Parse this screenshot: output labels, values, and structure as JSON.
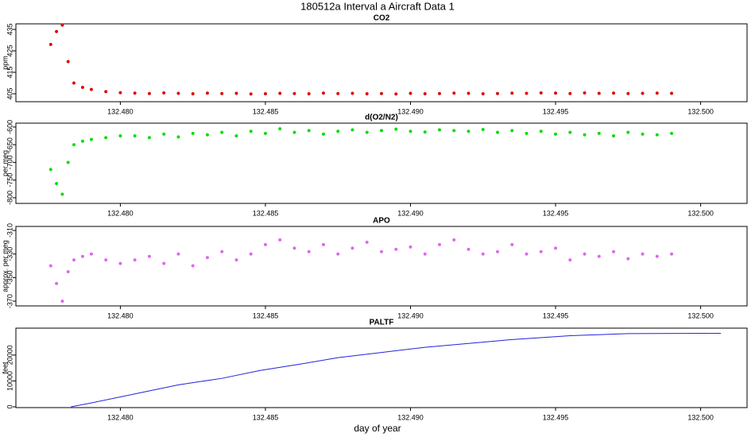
{
  "title": "180512a   Interval a Aircraft Data 1",
  "xlabel": "day of year",
  "chart_data": [
    {
      "type": "scatter",
      "title": "CO2",
      "ylabel": "ppm",
      "color": "#e00000",
      "x": [
        132.4776,
        132.4778,
        132.478,
        132.4782,
        132.4784,
        132.4787,
        132.479,
        132.4795,
        132.48,
        132.4805,
        132.481,
        132.4815,
        132.482,
        132.4825,
        132.483,
        132.4835,
        132.484,
        132.4845,
        132.485,
        132.4855,
        132.486,
        132.4865,
        132.487,
        132.4875,
        132.488,
        132.4885,
        132.489,
        132.4895,
        132.49,
        132.4905,
        132.491,
        132.4915,
        132.492,
        132.4925,
        132.493,
        132.4935,
        132.494,
        132.4945,
        132.495,
        132.4955,
        132.496,
        132.4965,
        132.497,
        132.4975,
        132.498,
        132.4985,
        132.499
      ],
      "values": [
        428,
        434,
        437,
        420,
        410,
        408,
        407,
        406,
        405.5,
        405.3,
        405.1,
        405.4,
        405.2,
        405,
        405.3,
        405.1,
        405.2,
        404.9,
        405,
        405.2,
        405.1,
        405,
        405.3,
        405.1,
        405.2,
        405,
        405.1,
        404.9,
        405.2,
        405,
        405.1,
        405.3,
        405.2,
        405,
        405.1,
        405.3,
        405.2,
        405.4,
        405.3,
        405.1,
        405.4,
        405.2,
        405.3,
        405.1,
        405.2,
        405.3,
        405.2
      ],
      "xlim": [
        132.4764,
        132.5016
      ],
      "ylim": [
        401.3,
        437.6
      ],
      "yticks": [
        405,
        415,
        425,
        435
      ],
      "xticks": [
        {
          "value": 132.48,
          "label": "132.480"
        },
        {
          "value": 132.485,
          "label": "132.485"
        },
        {
          "value": 132.49,
          "label": "132.490"
        },
        {
          "value": 132.495,
          "label": "132.495"
        },
        {
          "value": 132.5,
          "label": "132.500"
        }
      ]
    },
    {
      "type": "scatter",
      "title": "d(O2/N2)",
      "ylabel": "per meg",
      "color": "#00dd00",
      "x": [
        132.4776,
        132.4778,
        132.478,
        132.4782,
        132.4784,
        132.4787,
        132.479,
        132.4795,
        132.48,
        132.4805,
        132.481,
        132.4815,
        132.482,
        132.4825,
        132.483,
        132.4835,
        132.484,
        132.4845,
        132.485,
        132.4855,
        132.486,
        132.4865,
        132.487,
        132.4875,
        132.488,
        132.4885,
        132.489,
        132.4895,
        132.49,
        132.4905,
        132.491,
        132.4915,
        132.492,
        132.4925,
        132.493,
        132.4935,
        132.494,
        132.4945,
        132.495,
        132.4955,
        132.496,
        132.4965,
        132.497,
        132.4975,
        132.498,
        132.4985,
        132.499
      ],
      "values": [
        -720,
        -760,
        -790,
        -700,
        -650,
        -640,
        -635,
        -630,
        -625,
        -625,
        -630,
        -620,
        -628,
        -618,
        -622,
        -615,
        -625,
        -612,
        -618,
        -605,
        -615,
        -610,
        -620,
        -612,
        -608,
        -615,
        -610,
        -606,
        -612,
        -614,
        -608,
        -610,
        -612,
        -607,
        -615,
        -610,
        -618,
        -612,
        -620,
        -615,
        -622,
        -618,
        -625,
        -615,
        -620,
        -622,
        -618
      ],
      "xlim": [
        132.4764,
        132.5016
      ],
      "ylim": [
        -816,
        -589
      ],
      "yticks": [
        -800,
        -750,
        -700,
        -650,
        -600
      ],
      "xticks": [
        {
          "value": 132.48,
          "label": "132.480"
        },
        {
          "value": 132.485,
          "label": "132.485"
        },
        {
          "value": 132.49,
          "label": "132.490"
        },
        {
          "value": 132.495,
          "label": "132.495"
        },
        {
          "value": 132.5,
          "label": "132.500"
        }
      ]
    },
    {
      "type": "scatter",
      "title": "APO",
      "ylabel": "approx. per meg",
      "color": "#dd66ee",
      "x": [
        132.4776,
        132.4778,
        132.478,
        132.4782,
        132.4784,
        132.4787,
        132.479,
        132.4795,
        132.48,
        132.4805,
        132.481,
        132.4815,
        132.482,
        132.4825,
        132.483,
        132.4835,
        132.484,
        132.4845,
        132.485,
        132.4855,
        132.486,
        132.4865,
        132.487,
        132.4875,
        132.488,
        132.4885,
        132.489,
        132.4895,
        132.49,
        132.4905,
        132.491,
        132.4915,
        132.492,
        132.4925,
        132.493,
        132.4935,
        132.494,
        132.4945,
        132.495,
        132.4955,
        132.496,
        132.4965,
        132.497,
        132.4975,
        132.498,
        132.4985,
        132.499
      ],
      "values": [
        -340,
        -355,
        -370,
        -345,
        -335,
        -332,
        -330,
        -335,
        -338,
        -335,
        -332,
        -338,
        -330,
        -340,
        -333,
        -328,
        -335,
        -330,
        -322,
        -318,
        -325,
        -328,
        -322,
        -330,
        -325,
        -320,
        -328,
        -326,
        -324,
        -330,
        -322,
        -318,
        -326,
        -330,
        -328,
        -322,
        -330,
        -328,
        -325,
        -335,
        -330,
        -332,
        -328,
        -334,
        -330,
        -332,
        -330
      ],
      "xlim": [
        132.4764,
        132.5016
      ],
      "ylim": [
        -374,
        -306.6
      ],
      "yticks": [
        -370,
        -350,
        -330,
        -310
      ],
      "xticks": [
        {
          "value": 132.48,
          "label": "132.480"
        },
        {
          "value": 132.485,
          "label": "132.485"
        },
        {
          "value": 132.49,
          "label": "132.490"
        },
        {
          "value": 132.495,
          "label": "132.495"
        },
        {
          "value": 132.5,
          "label": "132.500"
        }
      ]
    },
    {
      "type": "line",
      "title": "PALTF",
      "ylabel": "feet",
      "color": "#2222dd",
      "x": [
        132.4783,
        132.479,
        132.4805,
        132.482,
        132.4835,
        132.4848,
        132.4862,
        132.4875,
        132.489,
        132.4905,
        132.492,
        132.4935,
        132.4955,
        132.4975,
        132.5007
      ],
      "values": [
        0,
        1500,
        5000,
        8500,
        11000,
        14000,
        16500,
        19000,
        21000,
        23000,
        24500,
        26000,
        27500,
        28300,
        28400
      ],
      "xlim": [
        132.4764,
        132.5016
      ],
      "ylim": [
        -300,
        30400
      ],
      "yticks": [
        0,
        10000,
        20000
      ],
      "xticks": [
        {
          "value": 132.48,
          "label": "132.480"
        },
        {
          "value": 132.485,
          "label": "132.485"
        },
        {
          "value": 132.49,
          "label": "132.490"
        },
        {
          "value": 132.495,
          "label": "132.495"
        },
        {
          "value": 132.5,
          "label": "132.500"
        }
      ]
    }
  ]
}
